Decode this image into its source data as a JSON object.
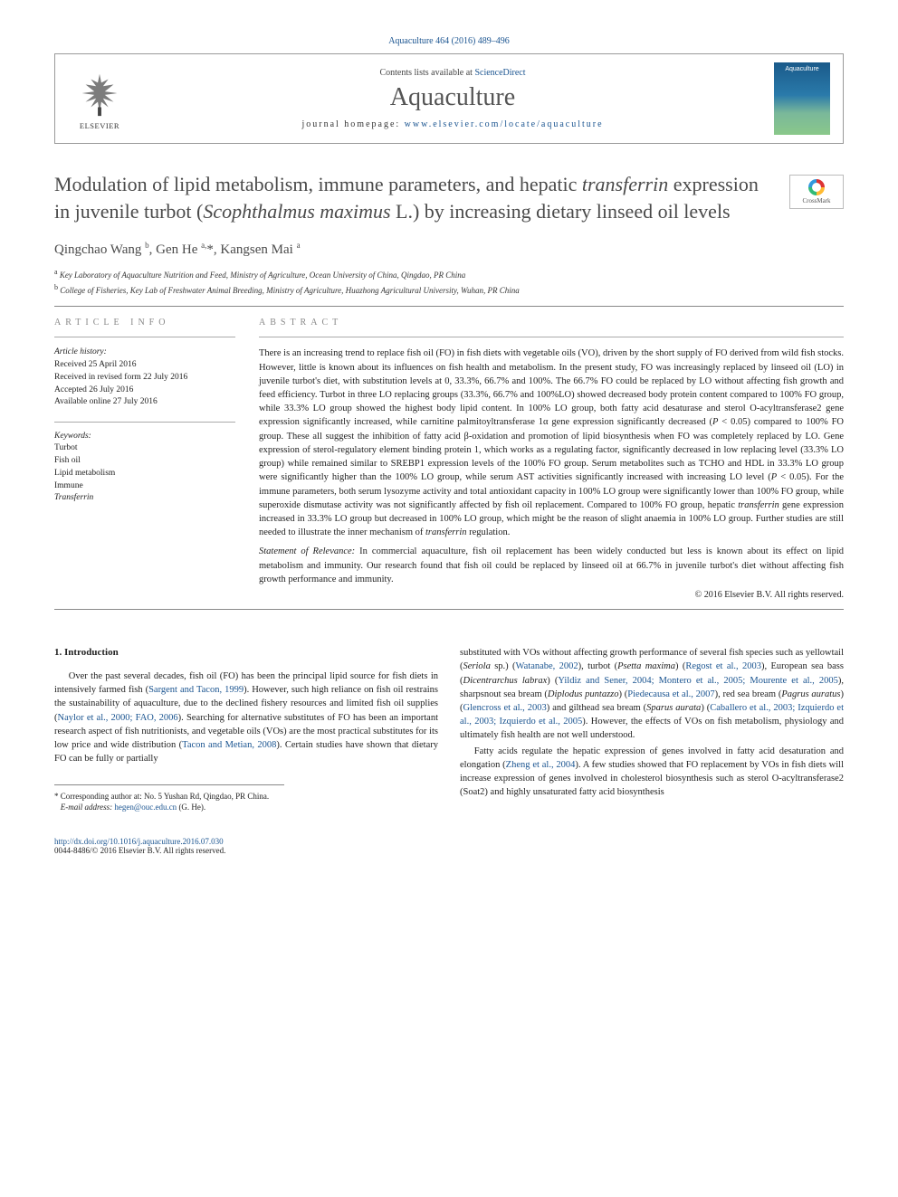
{
  "journal_ref": {
    "name": "Aquaculture",
    "vol": "464 (2016) 489–496"
  },
  "header": {
    "contents_prefix": "Contents lists available at ",
    "contents_link": "ScienceDirect",
    "journal_name": "Aquaculture",
    "homepage_prefix": "journal homepage: ",
    "homepage_url": "www.elsevier.com/locate/aquaculture",
    "elsevier": "ELSEVIER",
    "cover_label": "Aquaculture"
  },
  "crossmark": "CrossMark",
  "title_html": "Modulation of lipid metabolism, immune parameters, and hepatic <em>transferrin</em> expression in juvenile turbot (<em>Scophthalmus maximus</em> L.) by increasing dietary linseed oil levels",
  "authors_html": "Qingchao Wang <sup>b</sup>, Gen He <sup>a,</sup>*, Kangsen Mai <sup>a</sup>",
  "affiliations": [
    {
      "sup": "a",
      "text": "Key Laboratory of Aquaculture Nutrition and Feed, Ministry of Agriculture, Ocean University of China, Qingdao, PR China"
    },
    {
      "sup": "b",
      "text": "College of Fisheries, Key Lab of Freshwater Animal Breeding, Ministry of Agriculture, Huazhong Agricultural University, Wuhan, PR China"
    }
  ],
  "info": {
    "label": "article info",
    "history_label": "Article history:",
    "history": [
      "Received 25 April 2016",
      "Received in revised form 22 July 2016",
      "Accepted 26 July 2016",
      "Available online 27 July 2016"
    ],
    "keywords_label": "Keywords:",
    "keywords": [
      "Turbot",
      "Fish oil",
      "Lipid metabolism",
      "Immune",
      "Transferrin"
    ]
  },
  "abstract": {
    "label": "abstract",
    "text_html": "There is an increasing trend to replace fish oil (FO) in fish diets with vegetable oils (VO), driven by the short supply of FO derived from wild fish stocks. However, little is known about its influences on fish health and metabolism. In the present study, FO was increasingly replaced by linseed oil (LO) in juvenile turbot's diet, with substitution levels at 0, 33.3%, 66.7% and 100%. The 66.7% FO could be replaced by LO without affecting fish growth and feed efficiency. Turbot in three LO replacing groups (33.3%, 66.7% and 100%LO) showed decreased body protein content compared to 100% FO group, while 33.3% LO group showed the highest body lipid content. In 100% LO group, both fatty acid desaturase and sterol O-acyltransferase2 gene expression significantly increased, while carnitine palmitoyltransferase 1α gene expression significantly decreased (<em>P</em> &lt; 0.05) compared to 100% FO group. These all suggest the inhibition of fatty acid β-oxidation and promotion of lipid biosynthesis when FO was completely replaced by LO. Gene expression of sterol-regulatory element binding protein 1, which works as a regulating factor, significantly decreased in low replacing level (33.3% LO group) while remained similar to SREBP1 expression levels of the 100% FO group. Serum metabolites such as TCHO and HDL in 33.3% LO group were significantly higher than the 100% LO group, while serum AST activities significantly increased with increasing LO level (<em>P</em> &lt; 0.05). For the immune parameters, both serum lysozyme activity and total antioxidant capacity in 100% LO group were significantly lower than 100% FO group, while superoxide dismutase activity was not significantly affected by fish oil replacement. Compared to 100% FO group, hepatic <em>transferrin</em> gene expression increased in 33.3% LO group but decreased in 100% LO group, which might be the reason of slight anaemia in 100% LO group. Further studies are still needed to illustrate the inner mechanism of <em>transferrin</em> regulation.",
    "relevance_html": "<em>Statement of Relevance:</em> In commercial aquaculture, fish oil replacement has been widely conducted but less is known about its effect on lipid metabolism and immunity. Our research found that fish oil could be replaced by linseed oil at 66.7% in juvenile turbot's diet without affecting fish growth performance and immunity.",
    "copyright": "© 2016 Elsevier B.V. All rights reserved."
  },
  "body": {
    "heading": "1. Introduction",
    "left_html": "Over the past several decades, fish oil (FO) has been the principal lipid source for fish diets in intensively farmed fish (<a href='#'>Sargent and Tacon, 1999</a>). However, such high reliance on fish oil restrains the sustainability of aquaculture, due to the declined fishery resources and limited fish oil supplies (<a href='#'>Naylor et al., 2000; FAO, 2006</a>). Searching for alternative substitutes of FO has been an important research aspect of fish nutritionists, and vegetable oils (VOs) are the most practical substitutes for its low price and wide distribution (<a href='#'>Tacon and Metian, 2008</a>). Certain studies have shown that dietary FO can be fully or partially",
    "right_html": "substituted with VOs without affecting growth performance of several fish species such as yellowtail (<em>Seriola</em> sp.) (<a href='#'>Watanabe, 2002</a>), turbot (<em>Psetta maxima</em>) (<a href='#'>Regost et al., 2003</a>), European sea bass (<em>Dicentrarchus labrax</em>) (<a href='#'>Yildiz and Sener, 2004; Montero et al., 2005; Mourente et al., 2005</a>), sharpsnout sea bream (<em>Diplodus puntazzo</em>) (<a href='#'>Piedecausa et al., 2007</a>), red sea bream (<em>Pagrus auratus</em>) (<a href='#'>Glencross et al., 2003</a>) and gilthead sea bream (<em>Sparus aurata</em>) (<a href='#'>Caballero et al., 2003; Izquierdo et al., 2003; Izquierdo et al., 2005</a>). However, the effects of VOs on fish metabolism, physiology and ultimately fish health are not well understood.",
    "right2_html": "Fatty acids regulate the hepatic expression of genes involved in fatty acid desaturation and elongation (<a href='#'>Zheng et al., 2004</a>). A few studies showed that FO replacement by VOs in fish diets will increase expression of genes involved in cholesterol biosynthesis such as sterol O-acyltransferase2 (Soat2) and highly unsaturated fatty acid biosynthesis"
  },
  "corr": {
    "line1_html": "* Corresponding author at: No. 5 Yushan Rd, Qingdao, PR China.",
    "line2_label": "E-mail address:",
    "email": "hegen@ouc.edu.cn",
    "who": "(G. He)."
  },
  "footer": {
    "doi": "http://dx.doi.org/10.1016/j.aquaculture.2016.07.030",
    "issn_line": "0044-8486/© 2016 Elsevier B.V. All rights reserved."
  },
  "colors": {
    "link": "#1a5490",
    "text": "#222222",
    "heading": "#4a4a4a",
    "rule": "#888888"
  }
}
